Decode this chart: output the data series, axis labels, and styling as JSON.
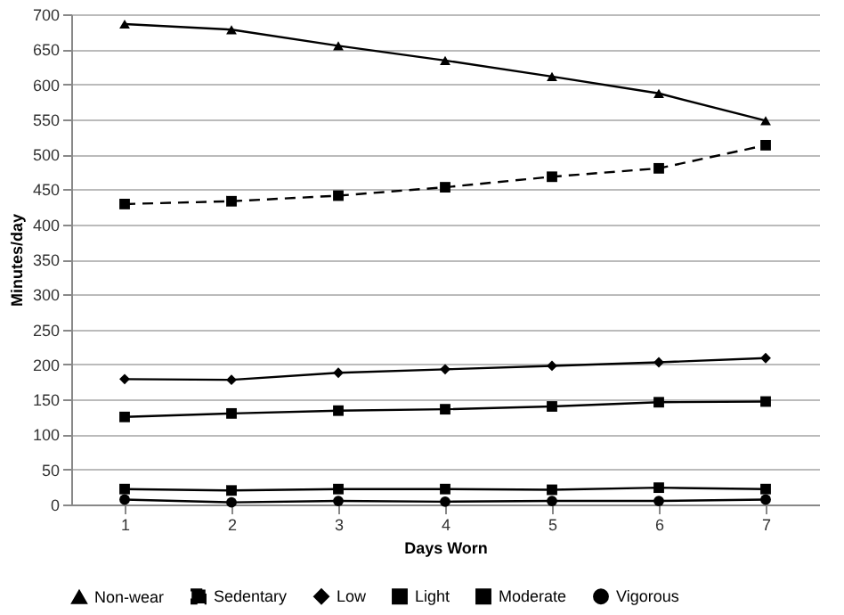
{
  "chart_data": {
    "type": "line",
    "xlabel": "Days Worn",
    "ylabel": "Minutes/day",
    "categories": [
      "1",
      "2",
      "3",
      "4",
      "5",
      "6",
      "7"
    ],
    "ylim": [
      0,
      700
    ],
    "yticks": [
      0,
      50,
      100,
      150,
      200,
      250,
      300,
      350,
      400,
      450,
      500,
      550,
      600,
      650,
      700
    ],
    "grid": "y",
    "legend": "bottom",
    "series": [
      {
        "name": "Non-wear",
        "color": "#000000",
        "marker": "triangle",
        "line_style": "solid",
        "values": [
          686,
          678,
          655,
          634,
          611,
          587,
          548
        ]
      },
      {
        "name": "Sedentary",
        "color": "#000000",
        "marker": "square",
        "line_style": "dashed",
        "values": [
          429,
          433,
          441,
          453,
          468,
          480,
          513
        ]
      },
      {
        "name": "Low",
        "color": "#000000",
        "marker": "diamond",
        "line_style": "solid",
        "values": [
          179,
          178,
          188,
          193,
          198,
          203,
          209
        ]
      },
      {
        "name": "Light",
        "color": "#000000",
        "marker": "square",
        "line_style": "solid",
        "values": [
          125,
          130,
          134,
          136,
          140,
          146,
          147
        ]
      },
      {
        "name": "Moderate",
        "color": "#000000",
        "marker": "square",
        "line_style": "solid",
        "values": [
          22,
          20,
          22,
          22,
          21,
          24,
          22
        ]
      },
      {
        "name": "Vigorous",
        "color": "#000000",
        "marker": "circle",
        "line_style": "solid",
        "values": [
          7,
          3,
          5,
          4,
          5,
          5,
          7
        ]
      }
    ]
  }
}
